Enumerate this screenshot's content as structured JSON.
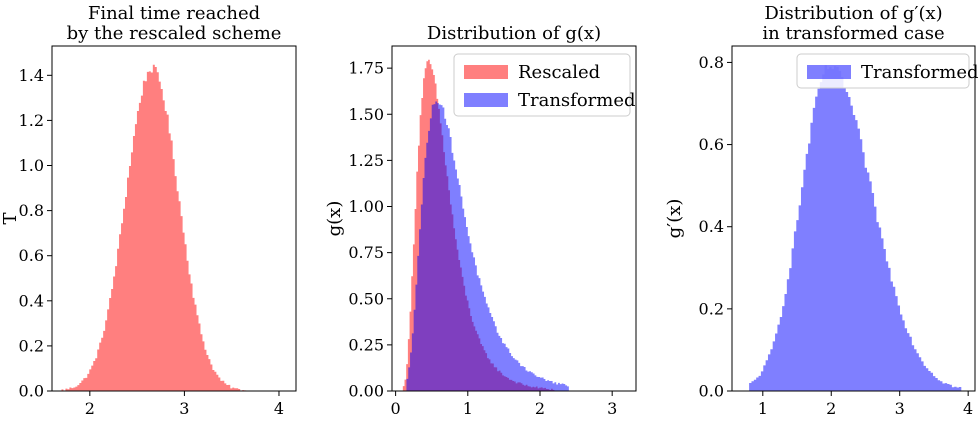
{
  "chart_data": [
    {
      "type": "bar",
      "title_lines": [
        "Final time reached",
        "by the rescaled scheme"
      ],
      "xlabel": "",
      "ylabel": "T",
      "xlim": [
        1.6,
        4.18
      ],
      "ylim": [
        0,
        1.53
      ],
      "xticks": [
        2,
        3,
        4
      ],
      "yticks": [
        0.0,
        0.2,
        0.4,
        0.6,
        0.8,
        1.0,
        1.2,
        1.4
      ],
      "xtick_labels": [
        "2",
        "3",
        "4"
      ],
      "ytick_labels": [
        "0.0",
        "0.2",
        "0.4",
        "0.6",
        "0.8",
        "1.0",
        "1.2",
        "1.4"
      ],
      "legend": null,
      "series": [
        {
          "name": "",
          "color": "#ff0000",
          "opacity": 0.5,
          "shape": "gaussian",
          "bin_range": [
            1.7,
            3.8
          ],
          "bins": 100,
          "peak_x": 2.66,
          "peak_y": 1.43,
          "sigma": 0.28,
          "noise": 0.02
        }
      ]
    },
    {
      "type": "bar",
      "title_lines": [
        "Distribution of g(x)"
      ],
      "xlabel": "",
      "ylabel": "g(x)",
      "xlim": [
        -0.05,
        3.33
      ],
      "ylim": [
        0,
        1.87
      ],
      "xticks": [
        0,
        1,
        2,
        3
      ],
      "yticks": [
        0.0,
        0.25,
        0.5,
        0.75,
        1.0,
        1.25,
        1.5,
        1.75
      ],
      "xtick_labels": [
        "0",
        "1",
        "2",
        "3"
      ],
      "ytick_labels": [
        "0.00",
        "0.25",
        "0.50",
        "0.75",
        "1.00",
        "1.25",
        "1.50",
        "1.75"
      ],
      "legend": {
        "position": "top-right",
        "entries": [
          "Rescaled",
          "Transformed"
        ]
      },
      "series": [
        {
          "name": "Rescaled",
          "color": "#ff0000",
          "opacity": 0.5,
          "shape": "lognormal",
          "bin_range": [
            0.1,
            2.2
          ],
          "bins": 90,
          "peak_x": 0.46,
          "peak_y": 1.78,
          "sigma": 0.48,
          "noise": 0.02
        },
        {
          "name": "Transformed",
          "color": "#0000ff",
          "opacity": 0.5,
          "shape": "lognormal",
          "bin_range": [
            0.15,
            2.4
          ],
          "bins": 90,
          "peak_x": 0.58,
          "peak_y": 1.58,
          "sigma": 0.5,
          "noise": 0.02
        }
      ]
    },
    {
      "type": "bar",
      "title_lines": [
        "Distribution of g′(x)",
        "in transformed case"
      ],
      "xlabel": "",
      "ylabel": "g′(x)",
      "xlim": [
        0.55,
        4.1
      ],
      "ylim": [
        0,
        0.84
      ],
      "xticks": [
        1,
        2,
        3,
        4
      ],
      "yticks": [
        0.0,
        0.2,
        0.4,
        0.6,
        0.8
      ],
      "xtick_labels": [
        "1",
        "2",
        "3",
        "4"
      ],
      "ytick_labels": [
        "0.0",
        "0.2",
        "0.4",
        "0.6",
        "0.8"
      ],
      "legend": {
        "position": "top-right",
        "entries": [
          "Transformed"
        ]
      },
      "series": [
        {
          "name": "Transformed",
          "color": "#0000ff",
          "opacity": 0.5,
          "shape": "skewnormal",
          "bin_range": [
            0.8,
            3.9
          ],
          "bins": 90,
          "peak_x": 1.98,
          "peak_y": 0.79,
          "sigma_left": 0.42,
          "sigma_right": 0.62,
          "noise": 0.012
        }
      ]
    }
  ]
}
